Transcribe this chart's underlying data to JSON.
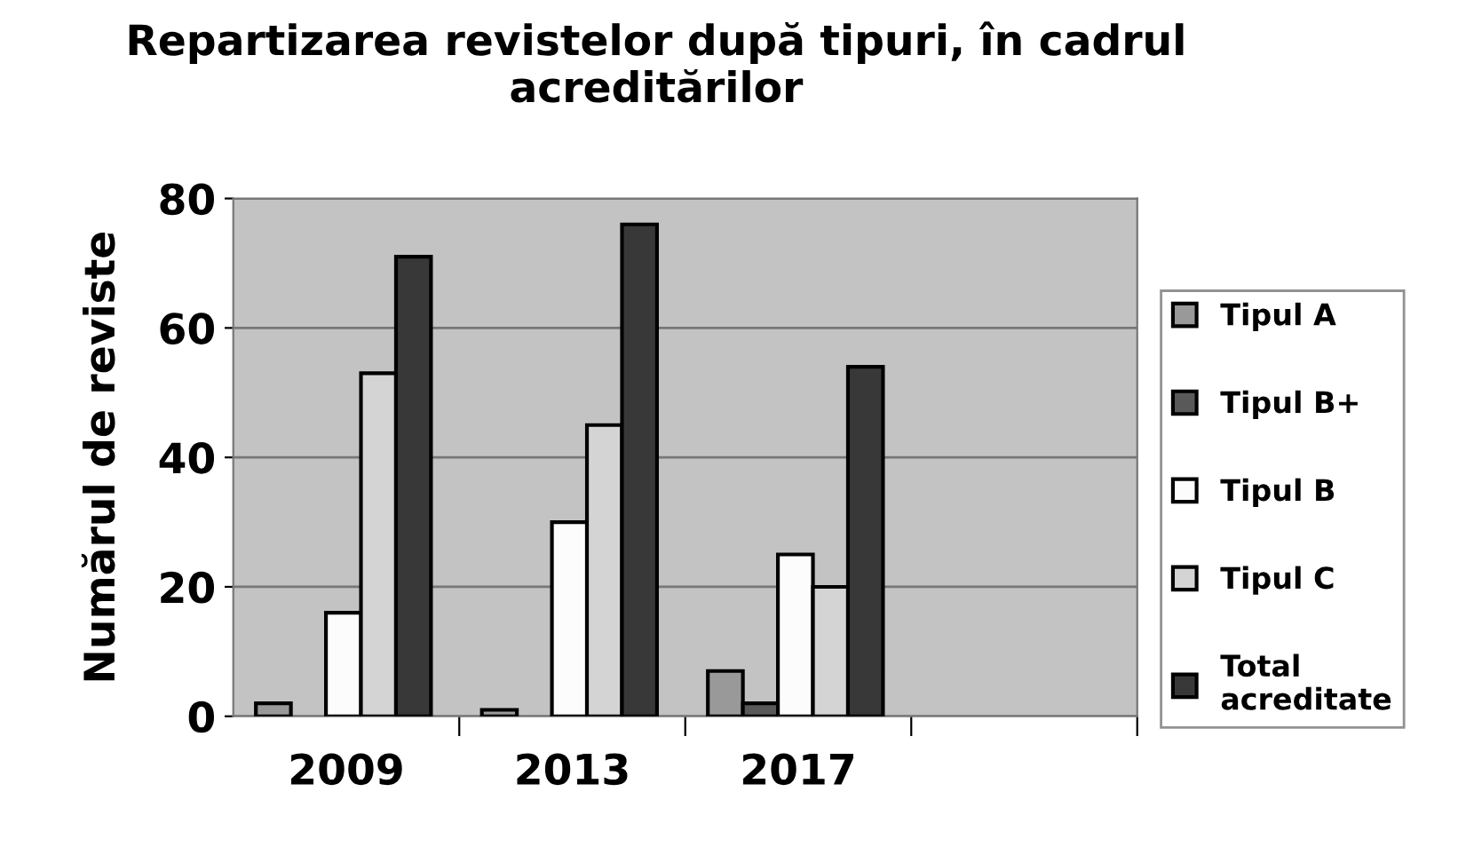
{
  "chart_data": {
    "type": "bar",
    "title": "Repartizarea revistelor după tipuri, în cadrul acreditărilor",
    "ylabel": "Numărul de reviste",
    "categories": [
      "2009",
      "2013",
      "2017",
      null
    ],
    "series": [
      {
        "name": "Tipul A",
        "color": "#999999",
        "values": [
          2,
          1,
          7,
          null
        ]
      },
      {
        "name": "Tipul B+",
        "color": "#595959",
        "values": [
          null,
          null,
          2,
          null
        ]
      },
      {
        "name": "Tipul B",
        "color": "#fcfcfc",
        "values": [
          16,
          30,
          25,
          null
        ]
      },
      {
        "name": "Tipul C",
        "color": "#d4d4d4",
        "values": [
          53,
          45,
          20,
          null
        ]
      },
      {
        "name": "Total acreditate",
        "color": "#383838",
        "values": [
          71,
          76,
          54,
          null
        ]
      }
    ],
    "ylim": [
      0,
      80
    ],
    "yticks": [
      0,
      20,
      40,
      60,
      80
    ],
    "grid": "y",
    "legend": "right"
  }
}
